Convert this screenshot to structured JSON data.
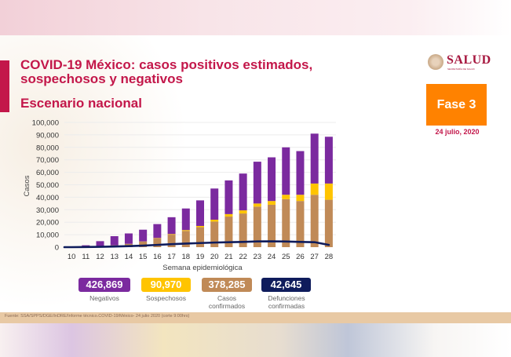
{
  "header": {
    "title": "COVID-19 México: casos positivos estimados, sospechosos y negativos",
    "subtitle": "Escenario nacional",
    "logo_text": "SALUD",
    "logo_subtext": "SECRETARÍA DE SALUD",
    "phase": "Fase 3",
    "date": "24 julio, 2020"
  },
  "colors": {
    "accent": "#c3174a",
    "phase_bg": "#ff8200",
    "negativos": "#7b2a9f",
    "sospechosos": "#ffc400",
    "confirmados": "#c08a57",
    "defunciones": "#0f1c5c"
  },
  "legend": [
    {
      "value": "426,869",
      "label": "Negativos",
      "color": "#7b2a9f"
    },
    {
      "value": "90,970",
      "label": "Sospechosos",
      "color": "#ffc400"
    },
    {
      "value": "378,285",
      "label": "Casos confirmados",
      "color": "#c08a57"
    },
    {
      "value": "42,645",
      "label": "Defunciones confirmadas",
      "color": "#0f1c5c"
    }
  ],
  "footer": {
    "source": "Fuente: SSA/SPPS/DGE/InDRE/Informe técnico.COVID-19/México- 24 julio 2020 (corte 9:00hrs)"
  },
  "chart_data": {
    "type": "bar",
    "stacked": true,
    "title": "",
    "xlabel": "Semana epidemiológica",
    "ylabel": "Casos",
    "ylim": [
      0,
      100000
    ],
    "yticks": [
      "0",
      "10,000",
      "20,000",
      "30,000",
      "40,000",
      "50,000",
      "60,000",
      "70,000",
      "80,000",
      "90,000",
      "100,000"
    ],
    "ytick_values": [
      0,
      10000,
      20000,
      30000,
      40000,
      50000,
      60000,
      70000,
      80000,
      90000,
      100000
    ],
    "grid": true,
    "categories": [
      "10",
      "11",
      "12",
      "13",
      "14",
      "15",
      "16",
      "17",
      "18",
      "19",
      "20",
      "21",
      "22",
      "23",
      "24",
      "25",
      "26",
      "27",
      "28"
    ],
    "series": [
      {
        "name": "Casos confirmados",
        "kind": "bar",
        "color": "#c08a57",
        "values": [
          0,
          200,
          800,
          1500,
          2700,
          4500,
          7000,
          10000,
          13000,
          16000,
          20500,
          24500,
          27000,
          32500,
          34000,
          38500,
          37000,
          42000,
          38000
        ]
      },
      {
        "name": "Sospechosos",
        "kind": "bar",
        "color": "#ffc400",
        "values": [
          0,
          0,
          0,
          0,
          0,
          100,
          300,
          500,
          700,
          1000,
          1500,
          2000,
          2500,
          2500,
          3000,
          3500,
          5000,
          9000,
          13000
        ]
      },
      {
        "name": "Negativos",
        "kind": "bar",
        "color": "#7b2a9f",
        "values": [
          0,
          1300,
          4000,
          7300,
          8300,
          9400,
          11200,
          13500,
          17300,
          20500,
          25000,
          27000,
          29500,
          33500,
          35000,
          38000,
          35000,
          40000,
          37500
        ]
      },
      {
        "name": "Defunciones confirmadas",
        "kind": "line",
        "color": "#0f1c5c",
        "values": [
          0,
          100,
          300,
          500,
          800,
          1200,
          1800,
          2400,
          2900,
          3300,
          3700,
          4000,
          4200,
          4600,
          4700,
          4500,
          4200,
          4000,
          1800
        ]
      }
    ]
  }
}
